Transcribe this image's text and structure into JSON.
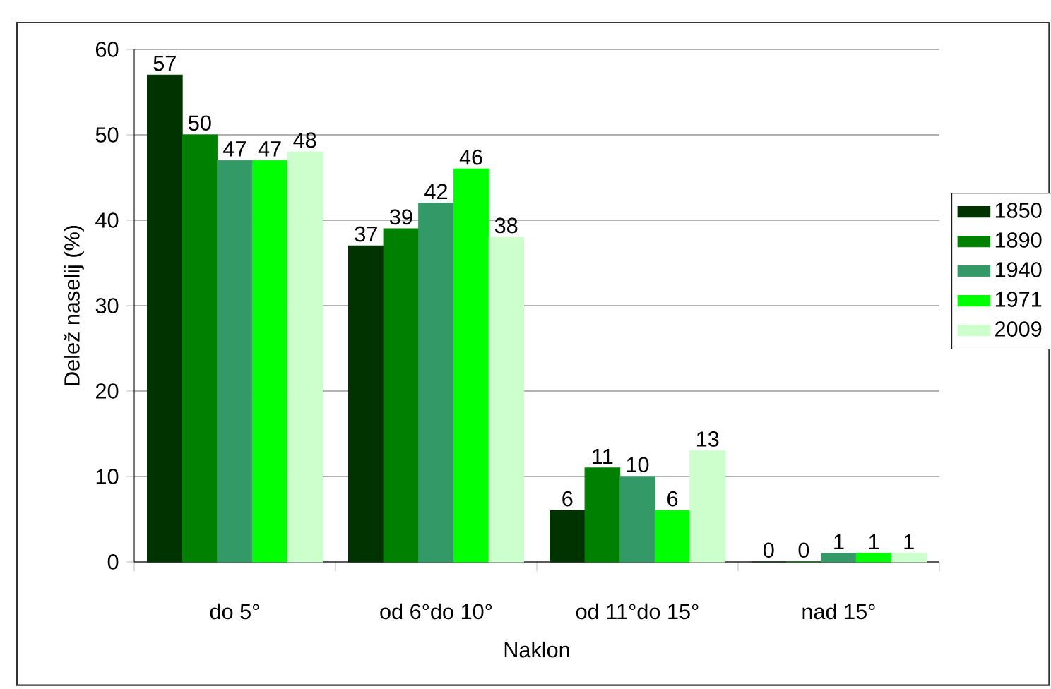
{
  "chart_data": {
    "type": "bar",
    "xlabel": "Naklon",
    "ylabel": "Delež naselij (%)",
    "categories": [
      "do 5°",
      "od 6°do 10°",
      "od 11°do 15°",
      "nad 15°"
    ],
    "series": [
      {
        "name": "1850",
        "color": "#003300",
        "values": [
          57,
          37,
          6,
          0
        ]
      },
      {
        "name": "1890",
        "color": "#008000",
        "values": [
          50,
          39,
          11,
          0
        ]
      },
      {
        "name": "1940",
        "color": "#339966",
        "values": [
          47,
          42,
          10,
          1
        ]
      },
      {
        "name": "1971",
        "color": "#00ff00",
        "values": [
          47,
          46,
          6,
          1
        ]
      },
      {
        "name": "2009",
        "color": "#ccffcc",
        "values": [
          48,
          38,
          13,
          1
        ]
      }
    ],
    "ylim": [
      0,
      60
    ],
    "yticks": [
      0,
      10,
      20,
      30,
      40,
      50,
      60
    ],
    "grid": "y",
    "legend": "right",
    "data_labels": true
  }
}
